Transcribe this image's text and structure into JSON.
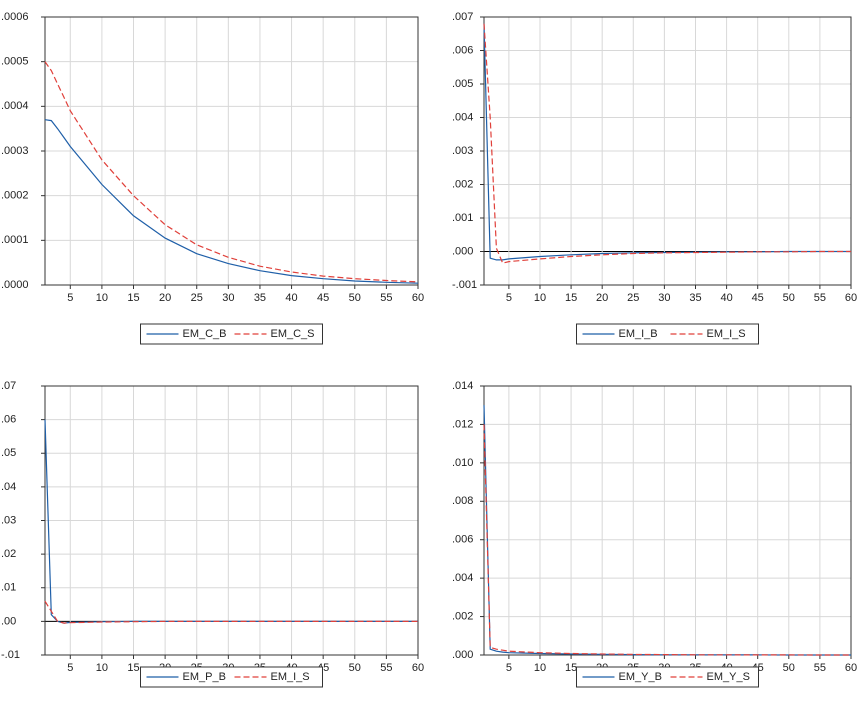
{
  "chart_data": [
    {
      "type": "line",
      "x": [
        1,
        2,
        3,
        4,
        5,
        10,
        15,
        20,
        25,
        30,
        35,
        40,
        45,
        50,
        55,
        60
      ],
      "xlim": [
        1,
        60
      ],
      "xticks": [
        5,
        10,
        15,
        20,
        25,
        30,
        35,
        40,
        45,
        50,
        55,
        60
      ],
      "ylim": [
        0,
        0.0006
      ],
      "yticks": [
        {
          "value": 0,
          "label": ".0000"
        },
        {
          "value": 0.0001,
          "label": ".0001"
        },
        {
          "value": 0.0002,
          "label": ".0002"
        },
        {
          "value": 0.0003,
          "label": ".0003"
        },
        {
          "value": 0.0004,
          "label": ".0004"
        },
        {
          "value": 0.0005,
          "label": ".0005"
        },
        {
          "value": 0.0006,
          "label": ".0006"
        }
      ],
      "grid": true,
      "series": [
        {
          "name": "EM_C_B",
          "color": "#1f5fa8",
          "style": "solid",
          "values": [
            0.00037,
            0.000368,
            0.00035,
            0.00033,
            0.00031,
            0.000225,
            0.000155,
            0.000105,
            7e-05,
            4.8e-05,
            3.2e-05,
            2.1e-05,
            1.4e-05,
            9e-06,
            6e-06,
            4e-06
          ]
        },
        {
          "name": "EM_C_S",
          "color": "#e0403a",
          "style": "dashed",
          "values": [
            0.0005,
            0.00048,
            0.00045,
            0.00042,
            0.00039,
            0.00028,
            0.0002,
            0.000135,
            9e-05,
            6.2e-05,
            4.2e-05,
            2.9e-05,
            2e-05,
            1.4e-05,
            1e-05,
            7e-06
          ]
        }
      ]
    },
    {
      "type": "line",
      "x": [
        1,
        2,
        3,
        4,
        5,
        10,
        15,
        20,
        25,
        30,
        35,
        40,
        45,
        50,
        55,
        60
      ],
      "xlim": [
        1,
        60
      ],
      "xticks": [
        5,
        10,
        15,
        20,
        25,
        30,
        35,
        40,
        45,
        50,
        55,
        60
      ],
      "ylim": [
        -0.001,
        0.007
      ],
      "yticks": [
        {
          "value": -0.001,
          "label": "-.001"
        },
        {
          "value": 0,
          "label": ".000"
        },
        {
          "value": 0.001,
          "label": ".001"
        },
        {
          "value": 0.002,
          "label": ".002"
        },
        {
          "value": 0.003,
          "label": ".003"
        },
        {
          "value": 0.004,
          "label": ".004"
        },
        {
          "value": 0.005,
          "label": ".005"
        },
        {
          "value": 0.006,
          "label": ".006"
        },
        {
          "value": 0.007,
          "label": ".007"
        }
      ],
      "grid": true,
      "series": [
        {
          "name": "EM_I_B",
          "color": "#1f5fa8",
          "style": "solid",
          "values": [
            0.0068,
            -0.0002,
            -0.00025,
            -0.00025,
            -0.00022,
            -0.00015,
            -0.0001,
            -6e-05,
            -4e-05,
            -3e-05,
            -2e-05,
            -1e-05,
            -1e-05,
            0,
            0,
            0
          ]
        },
        {
          "name": "EM_I_S",
          "color": "#e0403a",
          "style": "dashed",
          "values": [
            0.0068,
            0.004,
            0.0001,
            -0.00035,
            -0.0003,
            -0.00022,
            -0.00015,
            -0.0001,
            -6e-05,
            -4e-05,
            -3e-05,
            -2e-05,
            -1e-05,
            -1e-05,
            0,
            0
          ]
        }
      ]
    },
    {
      "type": "line",
      "x": [
        1,
        2,
        3,
        4,
        5,
        10,
        15,
        20,
        25,
        30,
        35,
        40,
        45,
        50,
        55,
        60
      ],
      "xlim": [
        1,
        60
      ],
      "xticks": [
        5,
        10,
        15,
        20,
        25,
        30,
        35,
        40,
        45,
        50,
        55,
        60
      ],
      "ylim": [
        -0.01,
        0.07
      ],
      "yticks": [
        {
          "value": -0.01,
          "label": "-.01"
        },
        {
          "value": 0,
          "label": ".00"
        },
        {
          "value": 0.01,
          "label": ".01"
        },
        {
          "value": 0.02,
          "label": ".02"
        },
        {
          "value": 0.03,
          "label": ".03"
        },
        {
          "value": 0.04,
          "label": ".04"
        },
        {
          "value": 0.05,
          "label": ".05"
        },
        {
          "value": 0.06,
          "label": ".06"
        },
        {
          "value": 0.07,
          "label": ".07"
        }
      ],
      "grid": true,
      "series": [
        {
          "name": "EM_P_B",
          "color": "#1f5fa8",
          "style": "solid",
          "values": [
            0.06,
            0.002,
            0,
            -0.0005,
            -0.0003,
            -0.0001,
            0,
            0,
            0,
            0,
            0,
            0,
            0,
            0,
            0,
            0
          ]
        },
        {
          "name": "EM_I_S",
          "color": "#e0403a",
          "style": "dashed",
          "values": [
            0.006,
            0.003,
            0,
            -0.0005,
            -0.0004,
            -0.0002,
            -0.0001,
            0,
            0,
            0,
            0,
            0,
            0,
            0,
            0,
            0
          ]
        }
      ]
    },
    {
      "type": "line",
      "x": [
        1,
        2,
        3,
        4,
        5,
        10,
        15,
        20,
        25,
        30,
        35,
        40,
        45,
        50,
        55,
        60
      ],
      "xlim": [
        1,
        60
      ],
      "xticks": [
        5,
        10,
        15,
        20,
        25,
        30,
        35,
        40,
        45,
        50,
        55,
        60
      ],
      "ylim": [
        0,
        0.014
      ],
      "yticks": [
        {
          "value": 0,
          "label": ".000"
        },
        {
          "value": 0.002,
          "label": ".002"
        },
        {
          "value": 0.004,
          "label": ".004"
        },
        {
          "value": 0.006,
          "label": ".006"
        },
        {
          "value": 0.008,
          "label": ".008"
        },
        {
          "value": 0.01,
          "label": ".010"
        },
        {
          "value": 0.012,
          "label": ".012"
        },
        {
          "value": 0.014,
          "label": ".014"
        }
      ],
      "grid": true,
      "series": [
        {
          "name": "EM_Y_B",
          "color": "#1f5fa8",
          "style": "solid",
          "values": [
            0.013,
            0.0003,
            0.0002,
            0.00015,
            0.00012,
            8e-05,
            5e-05,
            3e-05,
            2e-05,
            1.2e-05,
            8e-06,
            5e-06,
            3e-06,
            2e-06,
            1e-06,
            1e-06
          ]
        },
        {
          "name": "EM_Y_S",
          "color": "#e0403a",
          "style": "dashed",
          "values": [
            0.012,
            0.0004,
            0.0003,
            0.00025,
            0.0002,
            0.00012,
            8e-05,
            5e-05,
            3e-05,
            2e-05,
            1.2e-05,
            8e-06,
            5e-06,
            3e-06,
            2e-06,
            1e-06
          ]
        }
      ]
    }
  ]
}
